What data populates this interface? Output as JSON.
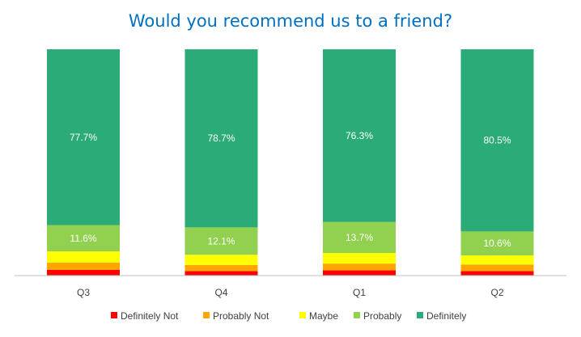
{
  "chart_data": {
    "type": "bar",
    "stacked": true,
    "normalized": true,
    "title": "Would you recommend us to a friend?",
    "xlabel": "",
    "ylabel": "",
    "ylim": [
      0,
      100
    ],
    "categories": [
      "Q3",
      "Q4",
      "Q1",
      "Q2"
    ],
    "series": [
      {
        "name": "Definitely Not",
        "color": "#ff0000",
        "values": [
          2.5,
          2.0,
          2.3,
          2.0
        ]
      },
      {
        "name": "Probably Not",
        "color": "#ffa500",
        "values": [
          3.2,
          2.7,
          3.0,
          2.9
        ]
      },
      {
        "name": "Maybe",
        "color": "#ffff00",
        "values": [
          5.0,
          4.5,
          4.7,
          4.0
        ]
      },
      {
        "name": "Probably",
        "color": "#92d050",
        "values": [
          11.6,
          12.1,
          13.7,
          10.6
        ],
        "labels": [
          "11.6%",
          "12.1%",
          "13.7%",
          "10.6%"
        ]
      },
      {
        "name": "Definitely",
        "color": "#2bab77",
        "values": [
          77.7,
          78.7,
          76.3,
          80.5
        ],
        "labels": [
          "77.7%",
          "78.7%",
          "76.3%",
          "80.5%"
        ]
      }
    ],
    "legend": "bottom",
    "grid": false,
    "colors": {
      "title": "#0070c0",
      "axis": "#bfbfbf"
    }
  }
}
